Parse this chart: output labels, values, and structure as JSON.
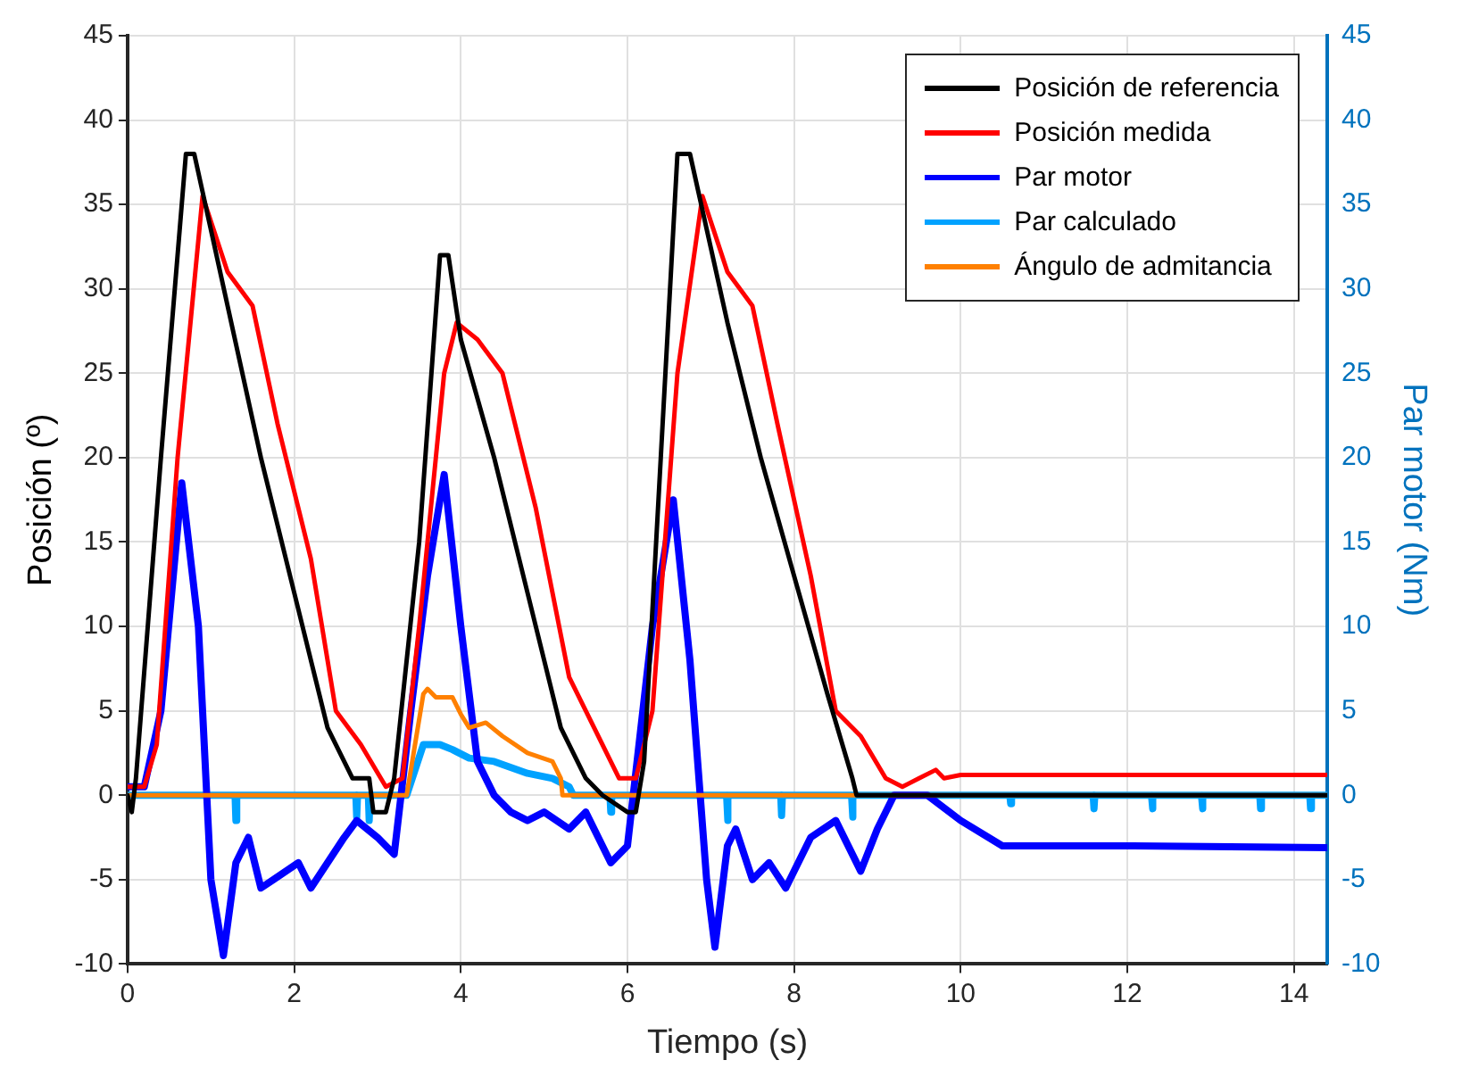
{
  "chart_data": {
    "type": "line",
    "xlabel": "Tiempo (s)",
    "ylabel": "Posición (º)",
    "y2label": "Par motor (Nm)",
    "xlim": [
      0,
      14.4
    ],
    "xticks": [
      0,
      2,
      4,
      6,
      8,
      10,
      12,
      14
    ],
    "ylim": [
      -10,
      45
    ],
    "yticks": [
      -10,
      -5,
      0,
      5,
      10,
      15,
      20,
      25,
      30,
      35,
      40,
      45
    ],
    "y2lim": [
      -10,
      45
    ],
    "y2ticks": [
      -10,
      -5,
      0,
      5,
      10,
      15,
      20,
      25,
      30,
      35,
      40,
      45
    ],
    "grid": true,
    "legend": "top right",
    "marker": "none",
    "line_style": "solid",
    "series": [
      {
        "name": "Posición de referencia",
        "color": "#000000",
        "x": [
          0,
          0.05,
          0.1,
          0.4,
          0.7,
          0.8,
          1.2,
          1.6,
          2.0,
          2.4,
          2.7,
          2.9,
          2.95,
          3.1,
          3.2,
          3.5,
          3.75,
          3.85,
          4.0,
          4.4,
          4.8,
          5.2,
          5.5,
          5.7,
          6.0,
          6.1,
          6.2,
          6.4,
          6.6,
          6.75,
          7.2,
          7.6,
          8.0,
          8.4,
          8.7,
          8.75,
          14.4
        ],
        "values": [
          0,
          -1,
          1,
          20,
          38,
          38,
          29,
          20,
          12,
          4,
          1,
          1,
          -1,
          -1,
          1,
          15,
          32,
          32,
          27,
          20,
          12,
          4,
          1,
          0,
          -1,
          -1,
          2,
          20,
          38,
          38,
          28,
          20,
          13,
          6,
          1,
          0,
          0
        ]
      },
      {
        "name": "Posición medida",
        "color": "#ff0000",
        "x": [
          0,
          0.2,
          0.35,
          0.6,
          0.9,
          1.2,
          1.5,
          1.8,
          2.2,
          2.5,
          2.8,
          3.1,
          3.3,
          3.5,
          3.8,
          3.95,
          4.2,
          4.5,
          4.9,
          5.3,
          5.6,
          5.9,
          6.1,
          6.3,
          6.6,
          6.9,
          7.2,
          7.5,
          7.8,
          8.2,
          8.5,
          8.8,
          9.1,
          9.3,
          9.5,
          9.7,
          9.8,
          10.0,
          14.4
        ],
        "values": [
          0.5,
          0.5,
          3,
          20,
          35.5,
          31,
          29,
          22,
          14,
          5,
          3,
          0.5,
          1,
          10,
          25,
          28,
          27,
          25,
          17,
          7,
          4,
          1,
          1,
          5,
          25,
          35.5,
          31,
          29,
          22,
          13,
          5,
          3.5,
          1,
          0.5,
          1,
          1.5,
          1,
          1.2,
          1.2
        ]
      },
      {
        "name": "Par motor",
        "color": "#0000ff",
        "axis": "y2",
        "x": [
          0,
          0.2,
          0.4,
          0.65,
          0.85,
          1.0,
          1.15,
          1.3,
          1.45,
          1.6,
          1.75,
          2.05,
          2.2,
          2.6,
          2.75,
          3.0,
          3.2,
          3.4,
          3.6,
          3.8,
          4.0,
          4.2,
          4.4,
          4.6,
          4.8,
          5.0,
          5.3,
          5.5,
          5.8,
          6.0,
          6.3,
          6.55,
          6.75,
          6.95,
          7.05,
          7.2,
          7.3,
          7.5,
          7.7,
          7.9,
          8.2,
          8.5,
          8.8,
          9.0,
          9.2,
          9.6,
          10.0,
          10.5,
          12.0,
          14.4
        ],
        "values": [
          0.5,
          0.5,
          5,
          18.5,
          10,
          -5,
          -9.5,
          -4,
          -2.5,
          -5.5,
          -5,
          -4,
          -5.5,
          -2.5,
          -1.5,
          -2.5,
          -3.5,
          5,
          13,
          19,
          10,
          2,
          0,
          -1,
          -1.5,
          -1,
          -2,
          -1,
          -4,
          -3,
          10,
          17.5,
          8,
          -5,
          -9,
          -3,
          -2,
          -5,
          -4,
          -5.5,
          -2.5,
          -1.5,
          -4.5,
          -2,
          0,
          0,
          -1.5,
          -3,
          -3,
          -3.1
        ]
      },
      {
        "name": "Par calculado",
        "color": "#00a2ff",
        "axis": "y2",
        "x": [
          0,
          1.29,
          1.3,
          1.31,
          2.74,
          2.75,
          2.76,
          2.89,
          2.9,
          2.91,
          3.35,
          3.55,
          3.75,
          3.9,
          4.1,
          4.4,
          4.8,
          5.1,
          5.3,
          5.35,
          5.79,
          5.8,
          5.81,
          7.19,
          7.2,
          7.21,
          7.84,
          7.85,
          7.86,
          8.69,
          8.7,
          8.71,
          10.59,
          10.6,
          10.61,
          11.59,
          11.6,
          11.61,
          12.29,
          12.3,
          12.31,
          12.89,
          12.9,
          12.91,
          13.59,
          13.6,
          13.61,
          14.19,
          14.2,
          14.21,
          14.4
        ],
        "values": [
          0,
          0,
          -1.5,
          0,
          0,
          -1.3,
          0,
          0,
          -1.5,
          0,
          0,
          3,
          3,
          2.7,
          2.2,
          2,
          1.3,
          1,
          0.5,
          0,
          0,
          -1,
          0,
          0,
          -1.5,
          0,
          0,
          -1.2,
          0,
          0,
          -1.3,
          0,
          0,
          -0.5,
          0,
          0,
          -0.8,
          0,
          0,
          -0.8,
          0,
          0,
          -0.8,
          0,
          0,
          -0.8,
          0,
          0,
          -0.8,
          0,
          0
        ]
      },
      {
        "name": "Ángulo de admitancia",
        "color": "#ff8000",
        "x": [
          0,
          3.35,
          3.55,
          3.6,
          3.7,
          3.9,
          4.0,
          4.1,
          4.3,
          4.5,
          4.8,
          5.1,
          5.2,
          5.22,
          14.4
        ],
        "values": [
          0,
          0,
          6,
          6.3,
          5.8,
          5.8,
          4.8,
          4,
          4.3,
          3.5,
          2.5,
          2,
          1,
          0,
          0
        ]
      }
    ]
  }
}
